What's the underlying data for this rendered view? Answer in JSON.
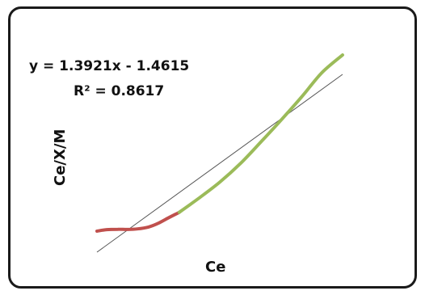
{
  "chart_data": {
    "type": "line",
    "title": "",
    "xlabel": "Ce",
    "ylabel": "Ce/X/M",
    "grid": false,
    "legend": "none",
    "annotations": {
      "equation": "y = 1.3921x - 1.4615",
      "r_squared": "R² = 0.8617"
    },
    "trendline": {
      "slope": 1.3921,
      "intercept": -1.4615,
      "color": "#555555"
    },
    "series": [
      {
        "color": "#c0504d",
        "x": [
          0.0,
          0.08,
          0.17,
          0.25,
          0.33,
          0.42,
          0.5,
          0.58,
          0.67
        ],
        "y": [
          0.0,
          0.08,
          0.1,
          0.09,
          0.12,
          0.22,
          0.42,
          0.7,
          1.0
        ]
      },
      {
        "color": "#9bbb59",
        "x": [
          0.67,
          0.83,
          1.0,
          1.17,
          1.33,
          1.5,
          1.67,
          1.83,
          2.0
        ],
        "y": [
          1.0,
          1.75,
          2.6,
          3.6,
          4.7,
          5.9,
          7.15,
          8.4,
          9.35
        ]
      }
    ]
  }
}
